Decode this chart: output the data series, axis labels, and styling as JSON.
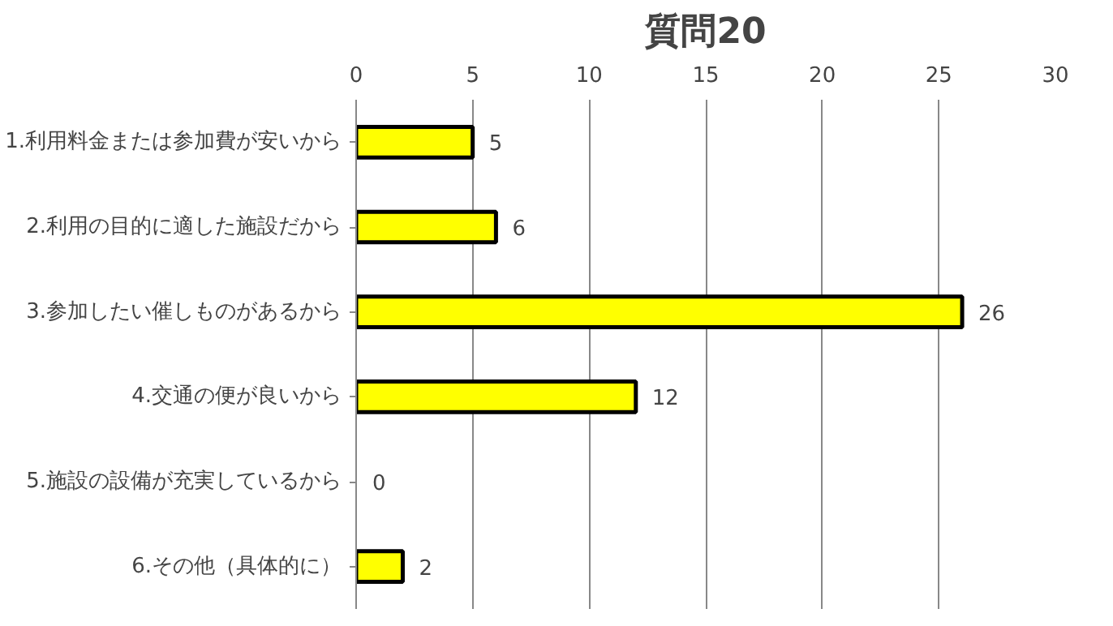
{
  "chart_data": {
    "type": "bar",
    "orientation": "horizontal",
    "title": "質問20",
    "categories": [
      "1.利用料金または参加費が安いから",
      "2.利用の目的に適した施設だから",
      "3.参加したい催しものがあるから",
      "4.交通の便が良いから",
      "5.施設の設備が充実しているから",
      "6.その他（具体的に）"
    ],
    "values": [
      5,
      6,
      26,
      12,
      0,
      2
    ],
    "color": "#ffff00",
    "xlim": [
      0,
      30
    ],
    "xticks": [
      0,
      5,
      10,
      15,
      20,
      25,
      30
    ],
    "grid": "x",
    "data_labels": true
  }
}
